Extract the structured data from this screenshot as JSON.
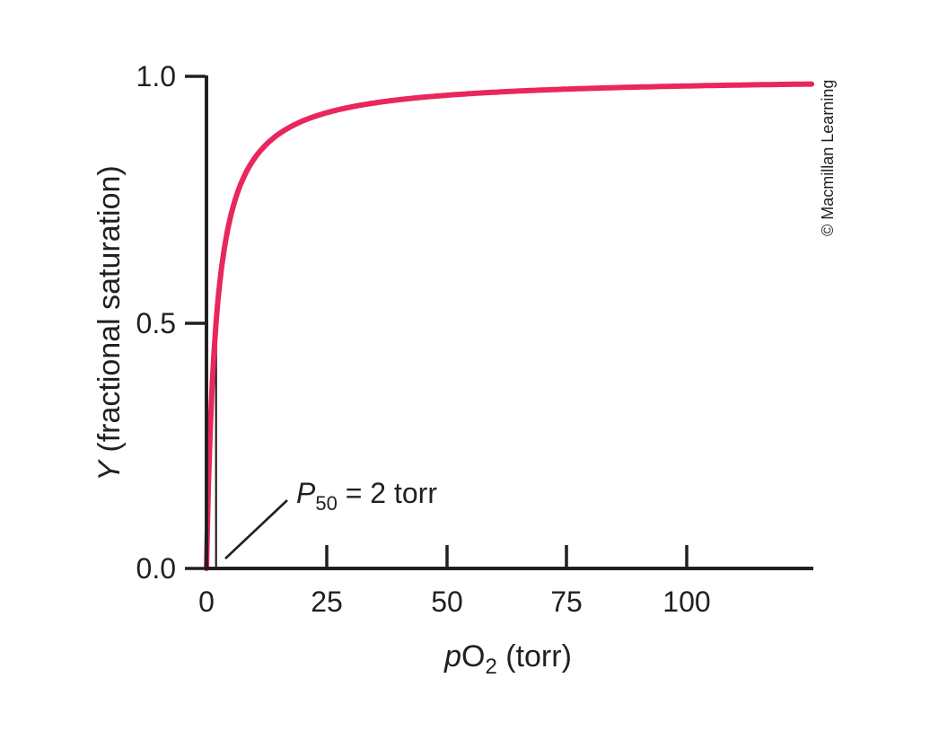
{
  "figure": {
    "credit": "© Macmillan Learning",
    "background": "#ffffff"
  },
  "chart_data": {
    "type": "line",
    "title": "",
    "description": "Hyperbolic oxygen-binding saturation curve, Y = pO2 / (P50 + pO2)",
    "p50_torr": 2,
    "xlabel": {
      "italic": "p",
      "main": "O",
      "sub": "2",
      "suffix": " (torr)"
    },
    "ylabel": {
      "italic": "Y",
      "rest": " (fractional saturation)"
    },
    "xlim": [
      0,
      126
    ],
    "ylim": [
      0,
      1.0
    ],
    "x_ticks": [
      0,
      25,
      50,
      75,
      100
    ],
    "x_tick_labels": [
      "0",
      "25",
      "50",
      "75",
      "100"
    ],
    "y_ticks": [
      0.0,
      0.5,
      1.0
    ],
    "y_tick_labels": [
      "0.0",
      "0.5",
      "1.0"
    ],
    "grid": false,
    "legend": "none",
    "axis_color": "#231f20",
    "series": [
      {
        "name": "fractional saturation Y",
        "color": "#e9275c",
        "x": [
          0,
          1,
          2,
          5,
          10,
          20,
          25,
          50,
          75,
          100,
          125
        ],
        "y": [
          0,
          0.33,
          0.5,
          0.71,
          0.83,
          0.91,
          0.93,
          0.96,
          0.97,
          0.98,
          0.98
        ]
      }
    ],
    "annotation": {
      "italic": "P",
      "sub": "50",
      "rest": " = 2 torr",
      "marker_x_torr": 2,
      "marker_y_range": [
        0,
        0.5
      ]
    }
  }
}
